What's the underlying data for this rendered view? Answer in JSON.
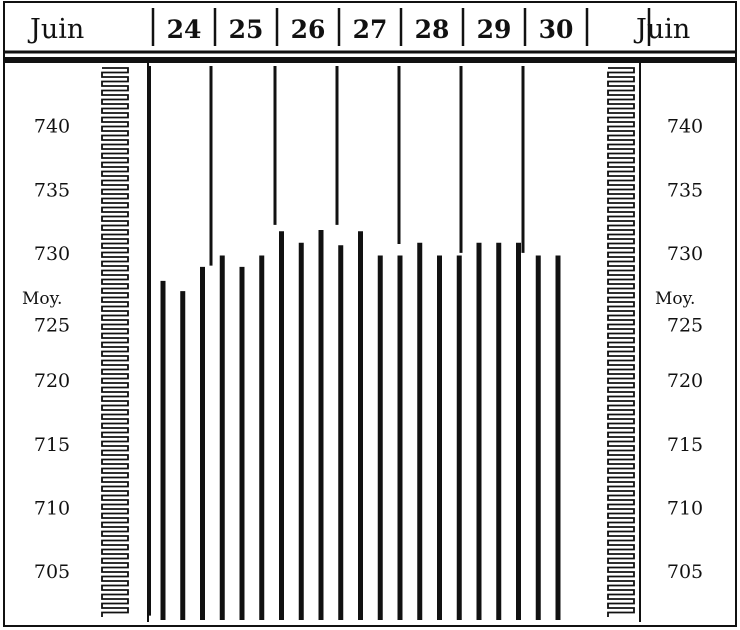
{
  "chart_data": {
    "type": "bar",
    "title": "",
    "month_label_left": "Juin",
    "month_label_right": "Juin",
    "day_labels": [
      "24",
      "25",
      "26",
      "27",
      "28",
      "29",
      "30"
    ],
    "mean_label": "Moy.",
    "y_ticks": [
      "740",
      "735",
      "730",
      "725",
      "720",
      "715",
      "710",
      "705"
    ],
    "ylim": [
      701,
      745
    ],
    "mean_value": 725,
    "series": [
      {
        "values": [
          727.8,
          727.0,
          728.9,
          729.8,
          728.9,
          729.8,
          731.7,
          730.8,
          731.8,
          730.6,
          731.7,
          729.8,
          729.8,
          730.8,
          729.8,
          729.8,
          730.8,
          730.8,
          730.8,
          729.8,
          729.8
        ]
      }
    ],
    "day_separator_tops": [
      729.0,
      732.2,
      732.2,
      730.7,
      730.0,
      730.0
    ],
    "colors": {
      "ink": "#111111",
      "background": "#ffffff"
    }
  }
}
